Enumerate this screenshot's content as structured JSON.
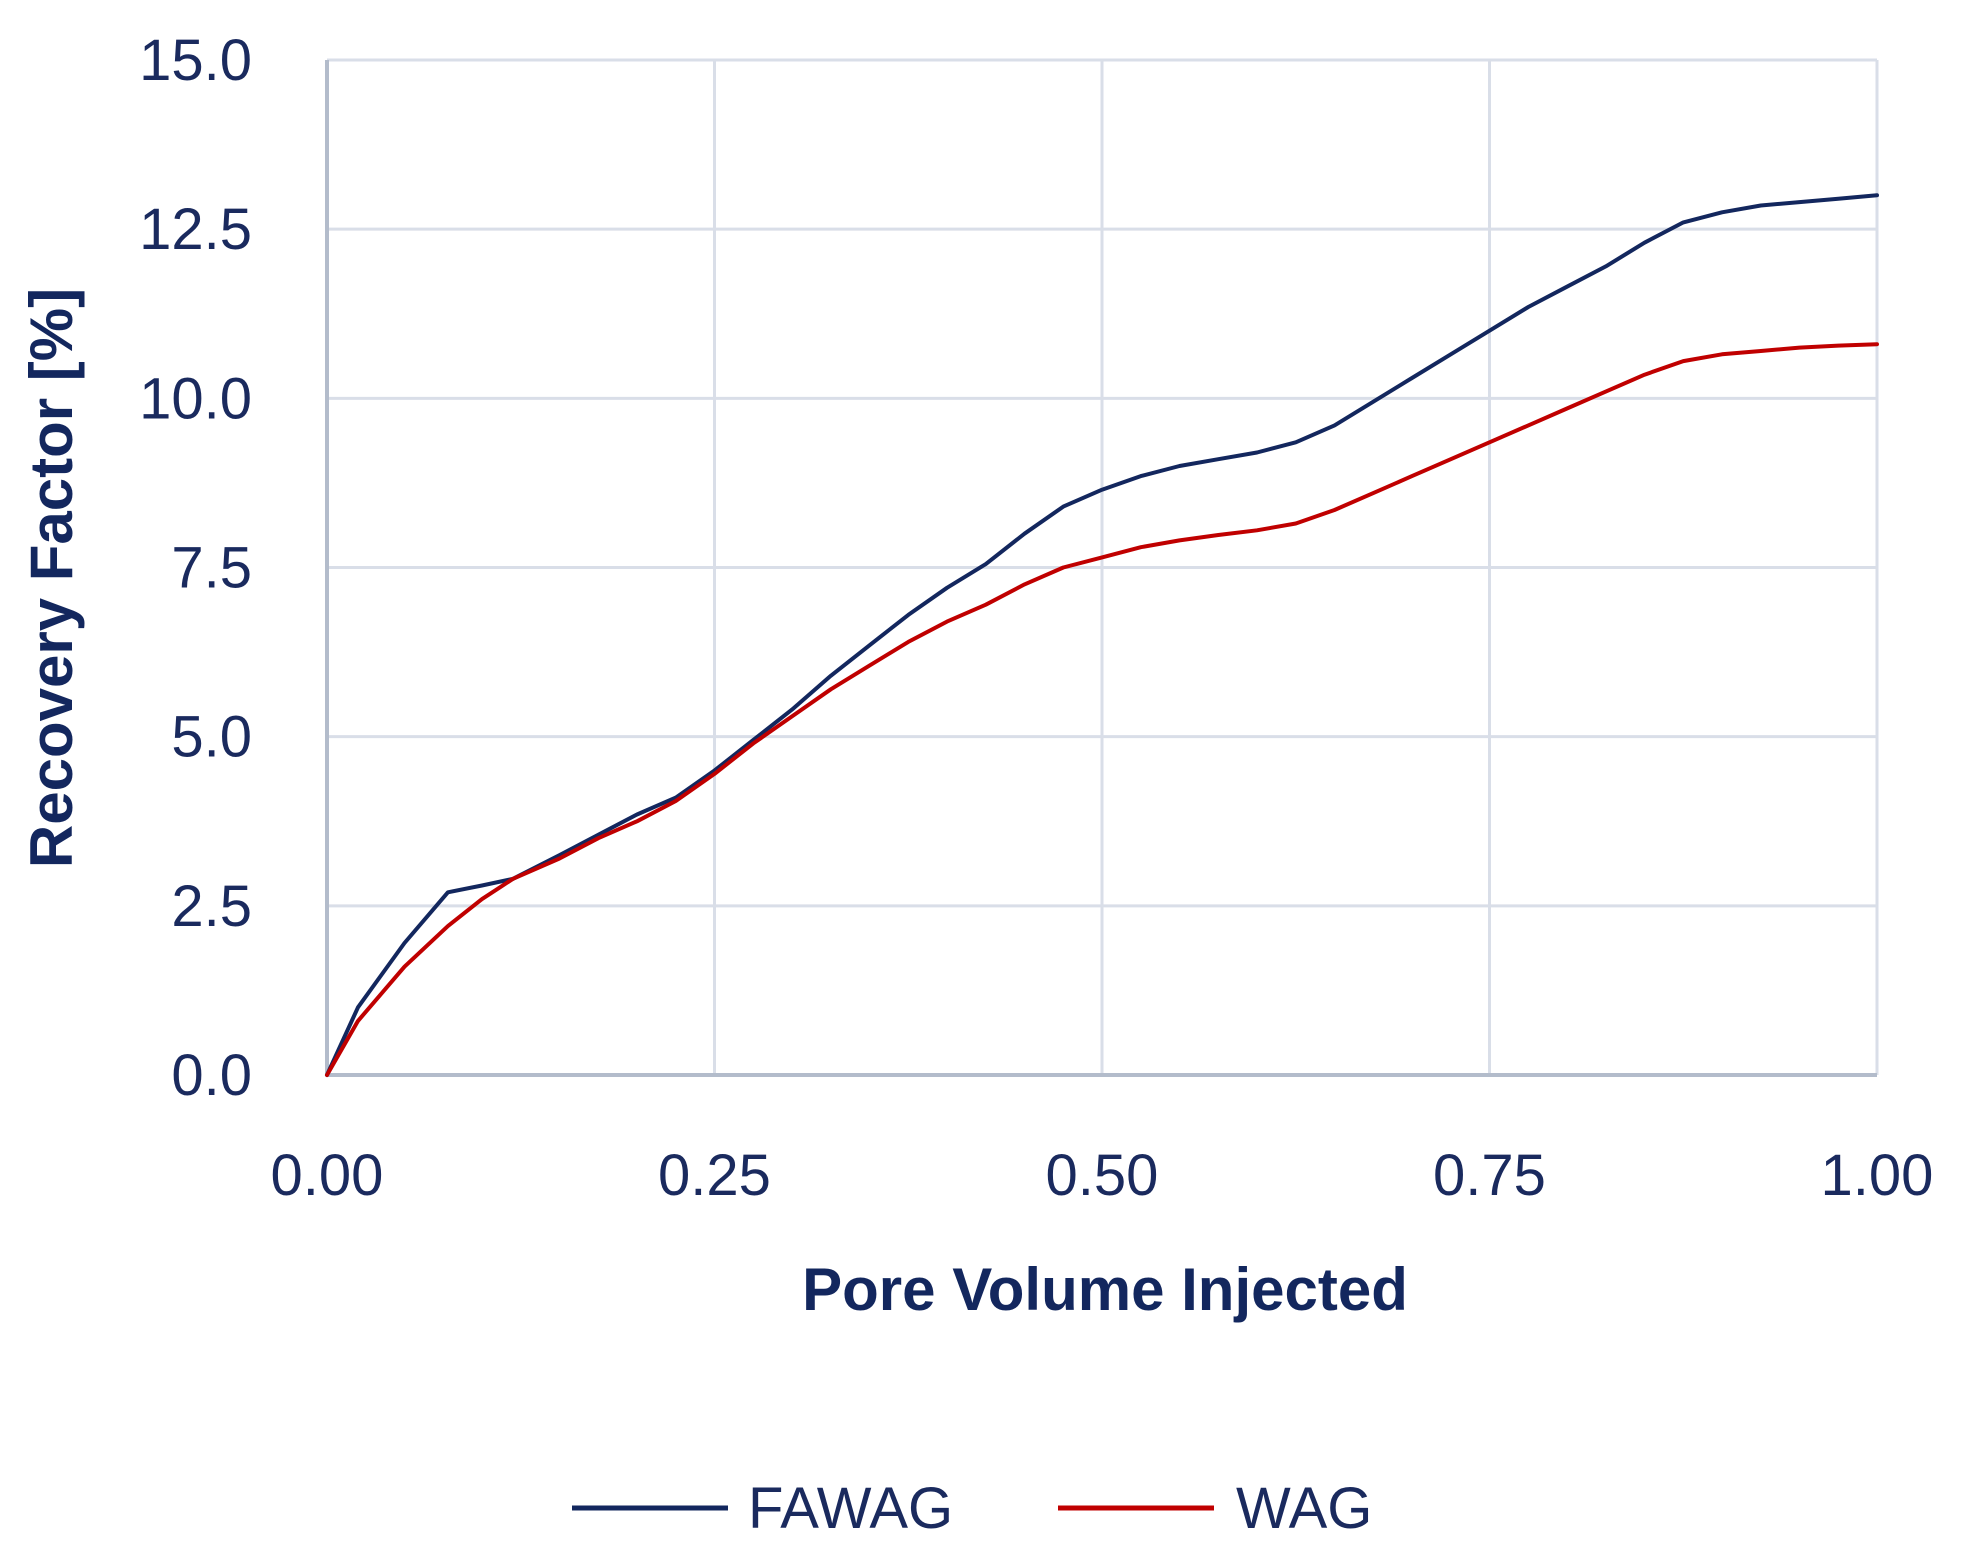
{
  "chart_data": {
    "type": "line",
    "title": "",
    "xlabel": "Pore Volume Injected",
    "ylabel": "Recovery Factor [%]",
    "xlim": [
      0,
      1
    ],
    "ylim": [
      0,
      15
    ],
    "x_ticks": [
      0,
      0.25,
      0.5,
      0.75,
      1.0
    ],
    "x_tick_labels": [
      "0.00",
      "0.25",
      "0.50",
      "0.75",
      "1.00"
    ],
    "y_ticks": [
      0,
      2.5,
      5,
      7.5,
      10,
      12.5,
      15
    ],
    "y_tick_labels": [
      "0.0",
      "2.5",
      "5.0",
      "7.5",
      "10.0",
      "12.5",
      "15.0"
    ],
    "grid": true,
    "legend_position": "bottom",
    "series": [
      {
        "name": "FAWAG",
        "color": "#13275e",
        "x": [
          0,
          0.02,
          0.05,
          0.078,
          0.1,
          0.12,
          0.15,
          0.175,
          0.2,
          0.225,
          0.25,
          0.275,
          0.3,
          0.325,
          0.35,
          0.375,
          0.4,
          0.425,
          0.45,
          0.475,
          0.5,
          0.525,
          0.55,
          0.575,
          0.6,
          0.625,
          0.65,
          0.675,
          0.7,
          0.725,
          0.75,
          0.775,
          0.8,
          0.825,
          0.85,
          0.875,
          0.9,
          0.925,
          0.95,
          0.975,
          1.0
        ],
        "y": [
          0,
          1.0,
          1.95,
          2.7,
          2.8,
          2.9,
          3.25,
          3.55,
          3.85,
          4.1,
          4.5,
          4.95,
          5.4,
          5.9,
          6.35,
          6.8,
          7.2,
          7.55,
          8.0,
          8.4,
          8.65,
          8.85,
          9.0,
          9.1,
          9.2,
          9.35,
          9.6,
          9.95,
          10.3,
          10.65,
          11.0,
          11.35,
          11.65,
          11.95,
          12.3,
          12.6,
          12.75,
          12.85,
          12.9,
          12.95,
          13.0
        ]
      },
      {
        "name": "WAG",
        "color": "#c00000",
        "x": [
          0,
          0.02,
          0.05,
          0.078,
          0.1,
          0.12,
          0.15,
          0.175,
          0.2,
          0.225,
          0.25,
          0.275,
          0.3,
          0.325,
          0.35,
          0.375,
          0.4,
          0.425,
          0.45,
          0.475,
          0.5,
          0.525,
          0.55,
          0.575,
          0.6,
          0.625,
          0.65,
          0.675,
          0.7,
          0.725,
          0.75,
          0.775,
          0.8,
          0.825,
          0.85,
          0.875,
          0.9,
          0.925,
          0.95,
          0.975,
          1.0
        ],
        "y": [
          0,
          0.8,
          1.6,
          2.2,
          2.6,
          2.9,
          3.2,
          3.5,
          3.75,
          4.05,
          4.45,
          4.9,
          5.3,
          5.7,
          6.05,
          6.4,
          6.7,
          6.95,
          7.25,
          7.5,
          7.65,
          7.8,
          7.9,
          7.98,
          8.05,
          8.15,
          8.35,
          8.6,
          8.85,
          9.1,
          9.35,
          9.6,
          9.85,
          10.1,
          10.35,
          10.55,
          10.65,
          10.7,
          10.75,
          10.78,
          10.8
        ]
      }
    ]
  }
}
